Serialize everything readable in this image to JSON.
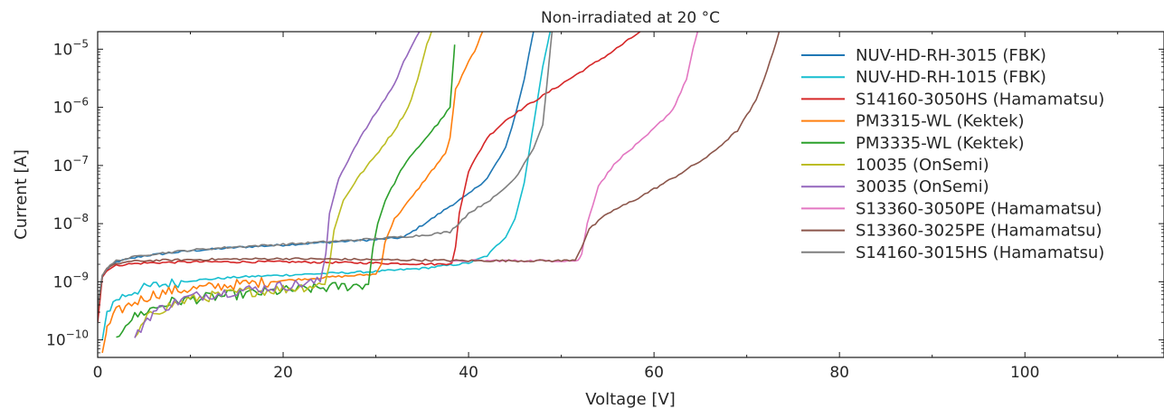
{
  "chart_data": {
    "type": "line",
    "title": "Non-irradiated at 20 °C",
    "xlabel": "Voltage [V]",
    "ylabel": "Current [A]",
    "xlim": [
      0,
      115
    ],
    "ylim": [
      5e-11,
      2e-05
    ],
    "yscale": "log",
    "x_ticks": [
      0,
      20,
      40,
      60,
      80,
      100
    ],
    "y_ticks": [
      {
        "value": 1e-10,
        "mantissa": "10",
        "exp": "−10"
      },
      {
        "value": 1e-09,
        "mantissa": "10",
        "exp": "−9"
      },
      {
        "value": 1e-08,
        "mantissa": "10",
        "exp": "−8"
      },
      {
        "value": 1e-07,
        "mantissa": "10",
        "exp": "−7"
      },
      {
        "value": 1e-06,
        "mantissa": "10",
        "exp": "−6"
      },
      {
        "value": 1e-05,
        "mantissa": "10",
        "exp": "−5"
      }
    ],
    "legend_position": "top-right",
    "grid": false,
    "series": [
      {
        "name": "NUV-HD-RH-3015 (FBK)",
        "color": "#1f77b4",
        "x": [
          0,
          0.5,
          1,
          2,
          5,
          10,
          15,
          20,
          25,
          30,
          33,
          36,
          38,
          40,
          42,
          44,
          45,
          46,
          46.5,
          47
        ],
        "y": [
          3e-10,
          1.2e-09,
          1.6e-09,
          2.2e-09,
          2.8e-09,
          3.4e-09,
          3.9e-09,
          4.3e-09,
          4.8e-09,
          5.3e-09,
          5.8e-09,
          1.2e-08,
          2e-08,
          3.2e-08,
          6e-08,
          2e-07,
          7e-07,
          3e-06,
          8e-06,
          2e-05
        ]
      },
      {
        "name": "NUV-HD-RH-1015 (FBK)",
        "color": "#17becf",
        "x": [
          0.5,
          1,
          2,
          4,
          6,
          10,
          15,
          20,
          25,
          30,
          35,
          40,
          42,
          44,
          45,
          46,
          47,
          48,
          48.8
        ],
        "y": [
          1e-10,
          3e-10,
          5e-10,
          7e-10,
          8.5e-10,
          1.05e-09,
          1.2e-09,
          1.3e-09,
          1.4e-09,
          1.5e-09,
          1.7e-09,
          2.1e-09,
          2.8e-09,
          6e-09,
          1.2e-08,
          5e-08,
          5e-07,
          5e-06,
          2e-05
        ]
      },
      {
        "name": "S14160-3050HS (Hamamatsu)",
        "color": "#d62728",
        "x": [
          0,
          0.5,
          1,
          2,
          3,
          5,
          10,
          20,
          30,
          37,
          38.2,
          38.6,
          39,
          40,
          42,
          44,
          46,
          50,
          55,
          58.5
        ],
        "y": [
          2e-10,
          1.2e-09,
          1.6e-09,
          1.9e-09,
          2e-09,
          2.1e-09,
          2.2e-09,
          2.2e-09,
          2.1e-09,
          2e-09,
          2.1e-09,
          4e-09,
          1.5e-08,
          8e-08,
          3e-07,
          6e-07,
          1e-06,
          2.5e-06,
          8e-06,
          2e-05
        ]
      },
      {
        "name": "PM3315-WL (Kektek)",
        "color": "#ff7f0e",
        "x": [
          0.5,
          1,
          2,
          4,
          6,
          8,
          10,
          15,
          20,
          25,
          30,
          30.6,
          31,
          32,
          34,
          36,
          37.5,
          38,
          38.6,
          40,
          41,
          41.5
        ],
        "y": [
          6e-11,
          1.5e-10,
          3e-10,
          4.5e-10,
          6e-10,
          7e-10,
          7.5e-10,
          9e-10,
          1.05e-09,
          1.2e-09,
          1.35e-09,
          2e-09,
          5e-09,
          1.2e-08,
          3e-08,
          8e-08,
          1.6e-07,
          3e-07,
          2e-06,
          6e-06,
          1.2e-05,
          2e-05
        ]
      },
      {
        "name": "PM3335-WL (Kektek)",
        "color": "#2ca02c",
        "x": [
          2,
          3,
          4,
          5,
          6,
          8,
          10,
          15,
          20,
          25,
          29.2,
          29.7,
          30.2,
          31,
          33,
          35,
          37,
          38,
          38.5
        ],
        "y": [
          1e-10,
          2e-10,
          2.5e-10,
          3e-10,
          3.5e-10,
          4.5e-10,
          5e-10,
          6e-10,
          7e-10,
          8e-10,
          9e-10,
          4e-09,
          1e-08,
          2.5e-08,
          1e-07,
          2.5e-07,
          6e-07,
          1e-06,
          1.2e-05
        ]
      },
      {
        "name": "10035 (OnSemi)",
        "color": "#bcbd22",
        "x": [
          4,
          5,
          6,
          8,
          10,
          15,
          20,
          24.5,
          25,
          25.5,
          26.5,
          28,
          30,
          32,
          33.5,
          34.5,
          35.5,
          36
        ],
        "y": [
          1e-10,
          2e-10,
          3e-10,
          4e-10,
          5e-10,
          6.5e-10,
          7.5e-10,
          9e-10,
          2e-09,
          8e-09,
          2.5e-08,
          6e-08,
          1.5e-07,
          4e-07,
          1e-06,
          3e-06,
          1.2e-05,
          2e-05
        ]
      },
      {
        "name": "30035 (OnSemi)",
        "color": "#9467bd",
        "x": [
          4,
          5,
          6,
          8,
          10,
          15,
          20,
          24,
          24.6,
          25,
          26,
          28,
          30,
          32,
          33,
          34,
          34.7
        ],
        "y": [
          1e-10,
          2e-10,
          3e-10,
          4.2e-10,
          5.5e-10,
          7e-10,
          8.5e-10,
          1e-09,
          3e-09,
          1.5e-08,
          6e-08,
          2.5e-07,
          8e-07,
          2.5e-06,
          6e-06,
          1.3e-05,
          2e-05
        ]
      },
      {
        "name": "S13360-3050PE (Hamamatsu)",
        "color": "#e377c2",
        "x": [
          38,
          40,
          45,
          50,
          51.8,
          52.2,
          52.8,
          54,
          56,
          59,
          62,
          63.5,
          64.2,
          64.7
        ],
        "y": [
          2.2e-09,
          2.3e-09,
          2.3e-09,
          2.3e-09,
          2.3e-09,
          3e-09,
          1e-08,
          4.5e-08,
          1.2e-07,
          3e-07,
          9e-07,
          3e-06,
          1e-05,
          2e-05
        ]
      },
      {
        "name": "S13360-3025PE (Hamamatsu)",
        "color": "#8c564b",
        "x": [
          0,
          0.5,
          1,
          2,
          3,
          5,
          10,
          20,
          30,
          40,
          50,
          51.5,
          52.2,
          53,
          55,
          58,
          62,
          66,
          69,
          71,
          72.5,
          73.5
        ],
        "y": [
          3e-10,
          1.3e-09,
          1.7e-09,
          2e-09,
          2.2e-09,
          2.3e-09,
          2.4e-09,
          2.5e-09,
          2.4e-09,
          2.3e-09,
          2.3e-09,
          2.4e-09,
          4e-09,
          8e-09,
          1.5e-08,
          2.6e-08,
          6e-08,
          1.5e-07,
          4e-07,
          1.3e-06,
          6e-06,
          2e-05
        ]
      },
      {
        "name": "S14160-3015HS (Hamamatsu)",
        "color": "#7f7f7f",
        "x": [
          0,
          0.5,
          1,
          2,
          5,
          10,
          15,
          20,
          25,
          30,
          35,
          38,
          38.6,
          40,
          43,
          45,
          47,
          48,
          48.5,
          49
        ],
        "y": [
          4e-10,
          1.3e-09,
          1.7e-09,
          2.3e-09,
          2.9e-09,
          3.5e-09,
          4e-09,
          4.4e-09,
          4.9e-09,
          5.5e-09,
          6.3e-09,
          7.2e-09,
          9e-09,
          1.5e-08,
          3e-08,
          6e-08,
          2e-07,
          5e-07,
          3e-06,
          2e-05
        ]
      }
    ]
  }
}
